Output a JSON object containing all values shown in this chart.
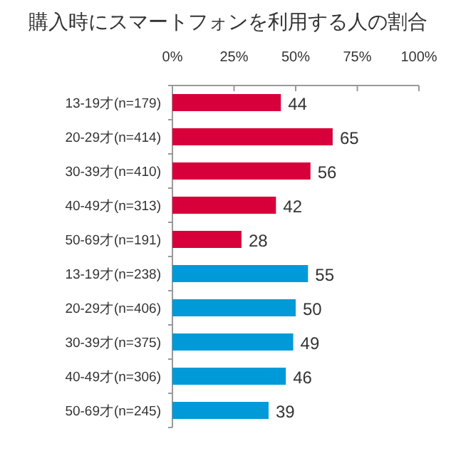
{
  "chart_data": {
    "type": "bar",
    "orientation": "horizontal",
    "title": "購入時にスマートフォンを利用する人の割合",
    "categories": [
      "13-19才(n=179)",
      "20-29才(n=414)",
      "30-39才(n=410)",
      "40-49才(n=313)",
      "50-69才(n=191)",
      "13-19才(n=238)",
      "20-29才(n=406)",
      "30-39才(n=375)",
      "40-49才(n=306)",
      "50-69才(n=245)"
    ],
    "values": [
      44,
      65,
      56,
      42,
      28,
      55,
      50,
      49,
      46,
      39
    ],
    "colors": [
      "#d8003a",
      "#d8003a",
      "#d8003a",
      "#d8003a",
      "#d8003a",
      "#009ad8",
      "#009ad8",
      "#009ad8",
      "#009ad8",
      "#009ad8"
    ],
    "xlim": [
      0,
      100
    ],
    "xticks": [
      {
        "value": 0,
        "label": "0%"
      },
      {
        "value": 25,
        "label": "25%"
      },
      {
        "value": 50,
        "label": "50%"
      },
      {
        "value": 75,
        "label": "75%"
      },
      {
        "value": 100,
        "label": "100%"
      }
    ],
    "data_labels": true,
    "grid": false
  }
}
